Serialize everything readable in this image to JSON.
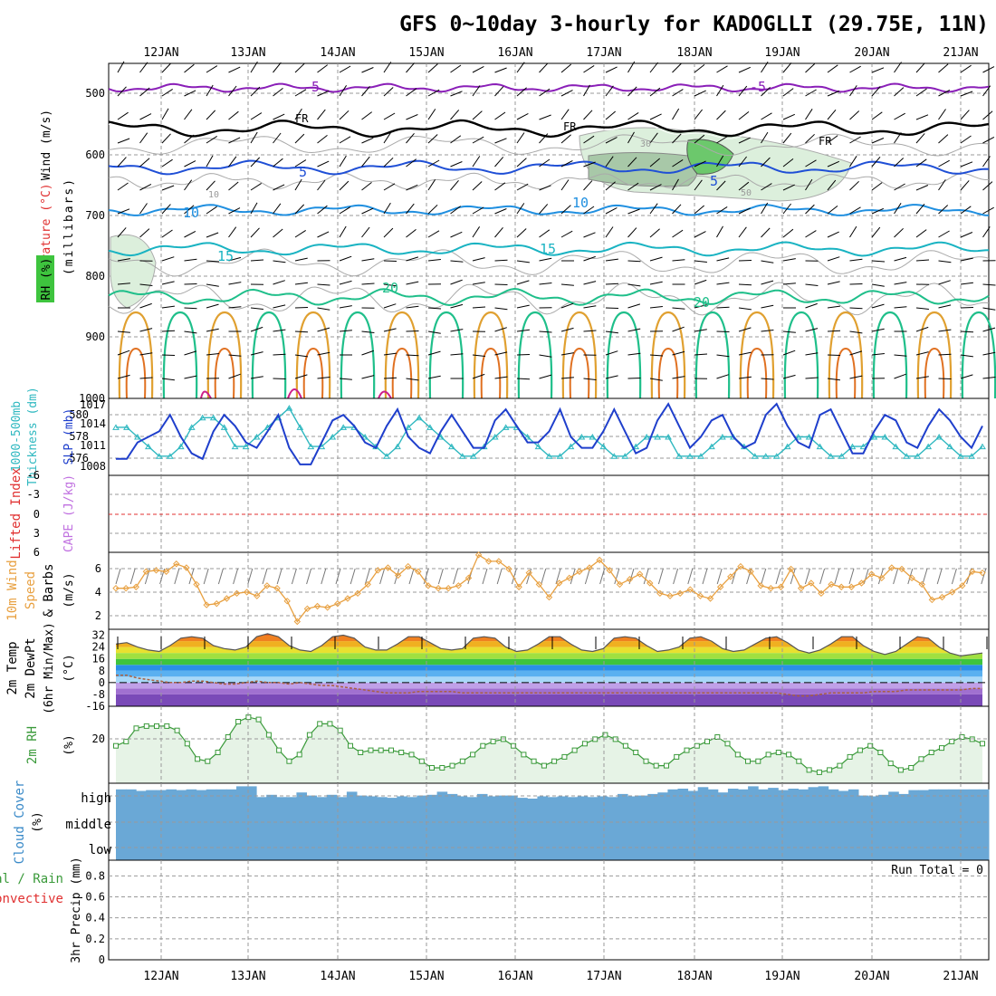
{
  "title": "GFS 0~10day 3-hourly for KADOGLLI (29.75E, 11N)",
  "date_labels": [
    "12JAN",
    "13JAN",
    "14JAN",
    "15JAN",
    "16JAN",
    "17JAN",
    "18JAN",
    "19JAN",
    "20JAN",
    "21JAN"
  ],
  "colors": {
    "purple": "#8a1fb8",
    "black": "#000000",
    "blue": "#1f4fd6",
    "lightblue": "#1f8fe0",
    "teal": "#19b3c2",
    "green": "#1fbf8a",
    "orange": "#e0a030",
    "darkorange": "#e07020",
    "magenta": "#cc1f8a",
    "slp": "#1f3fcc",
    "thick": "#2fb8c0",
    "wind": "#e8a040",
    "rh": "#3a9a3a",
    "cloud": "#6aa8d6",
    "red": "#e03030"
  },
  "panels": {
    "upper": {
      "label_wind": "Wind (m/s)",
      "label_temp": "Temperature (°C)",
      "label_rh": "RH (%)",
      "label_units": "(millibars)",
      "ylabels": [
        "500",
        "600",
        "700",
        "800",
        "900",
        "1000"
      ],
      "contour_labels": {
        "m5": "-5",
        "fr": "FR",
        "p5": "5",
        "p10": "10",
        "p15": "15",
        "p20": "20",
        "rh10": "10",
        "rh30": "30",
        "rh50": "50"
      }
    },
    "slp": {
      "label_thick": "1000-500mb",
      "label_thick2": "Thickness (dm)",
      "label_slp": "SLP (mb)",
      "thick_ticks": [
        "580",
        "578",
        "576"
      ],
      "slp_ticks": [
        "1017",
        "1014",
        "1011",
        "1008"
      ]
    },
    "cape": {
      "label_li": "Lifted Index",
      "label_cape": "CAPE (J/kg)",
      "ticks": [
        "-6",
        "-3",
        "0",
        "3",
        "6"
      ]
    },
    "wind10m": {
      "label1": "10m Wind",
      "label2": "Speed",
      "label3": "& Barbs",
      "units": "(m/s)",
      "ticks": [
        "6",
        "4",
        "2"
      ]
    },
    "temp2m": {
      "label1": "2m Temp",
      "label2": "2m DewPt",
      "label3": "(6hr Min/Max)",
      "units": "(°C)",
      "ticks": [
        "32",
        "24",
        "16",
        "8",
        "0",
        "-8",
        "-16"
      ]
    },
    "rh2m": {
      "label": "2m RH",
      "units": "(%)",
      "ticks": [
        "20"
      ]
    },
    "cloud": {
      "label": "Cloud Cover",
      "units": "(%)",
      "levels": [
        "high",
        "middle",
        "low"
      ]
    },
    "precip": {
      "label1": "Total / Rain",
      "label2": "Convective",
      "label3": "3hr Precip (mm)",
      "run_total": "Run Total = 0",
      "ticks": [
        "0.8",
        "0.6",
        "0.4",
        "0.2",
        "0"
      ]
    }
  },
  "chart_data": [
    {
      "type": "line",
      "name": "SLP",
      "values": [
        1008,
        1008,
        1011,
        1012,
        1013,
        1016,
        1012,
        1009,
        1008,
        1013,
        1016,
        1014,
        1011,
        1010,
        1013,
        1016,
        1010,
        1007,
        1007,
        1011,
        1015,
        1016,
        1014,
        1011,
        1010,
        1014,
        1017,
        1012,
        1010,
        1009,
        1013,
        1016,
        1013,
        1010,
        1010,
        1015,
        1017,
        1014,
        1011,
        1011,
        1013,
        1017,
        1012,
        1010,
        1010,
        1013,
        1017,
        1013,
        1009,
        1010,
        1015,
        1018,
        1014,
        1010,
        1012,
        1015,
        1016,
        1012,
        1010,
        1011,
        1016,
        1018,
        1014,
        1011,
        1010,
        1016,
        1017,
        1013,
        1009,
        1009,
        1013,
        1016,
        1015,
        1011,
        1010,
        1014,
        1017,
        1015,
        1012,
        1010,
        1014
      ]
    },
    {
      "type": "line",
      "name": "Thickness",
      "values": [
        579,
        579,
        578,
        577,
        576,
        576,
        577,
        579,
        580,
        580,
        579,
        577,
        577,
        578,
        579,
        580,
        581,
        579,
        577,
        577,
        578,
        579,
        579,
        578,
        577,
        576,
        577,
        579,
        580,
        579,
        578,
        577,
        576,
        576,
        577,
        578,
        579,
        579,
        578,
        577,
        576,
        576,
        577,
        578,
        578,
        577,
        576,
        576,
        577,
        578,
        578,
        578,
        576,
        576,
        576,
        577,
        578,
        578,
        577,
        576,
        576,
        576,
        577,
        578,
        578,
        577,
        576,
        576,
        577,
        577,
        578,
        578,
        577,
        576,
        576,
        577,
        578,
        577,
        576,
        576,
        577
      ]
    },
    {
      "type": "line",
      "name": "10m Wind Speed",
      "ylim": [
        1,
        7
      ],
      "values": [
        4.2,
        4.2,
        4.3,
        5.5,
        5.6,
        5.5,
        6.1,
        5.8,
        4.5,
        2.9,
        3.0,
        3.4,
        3.8,
        3.9,
        3.6,
        4.4,
        4.2,
        3.2,
        1.6,
        2.6,
        2.8,
        2.7,
        3.0,
        3.4,
        3.8,
        4.5,
        5.6,
        5.8,
        5.2,
        5.9,
        5.5,
        4.4,
        4.2,
        4.2,
        4.4,
        5.0,
        6.8,
        6.3,
        6.3,
        5.7,
        4.3,
        5.4,
        4.5,
        3.5,
        4.6,
        5.0,
        5.5,
        5.8,
        6.4,
        5.6,
        4.5,
        4.9,
        5.3,
        4.6,
        3.8,
        3.6,
        3.8,
        4.1,
        3.6,
        3.4,
        4.3,
        5.1,
        5.9,
        5.5,
        4.4,
        4.2,
        4.3,
        5.7,
        4.2,
        4.6,
        3.8,
        4.5,
        4.3,
        4.3,
        4.6,
        5.3,
        5.0,
        5.8,
        5.7,
        5.0,
        4.5,
        3.3,
        3.5,
        3.9,
        4.4,
        5.5,
        5.4
      ]
    },
    {
      "type": "area",
      "name": "2m Temp",
      "ylim": [
        -16,
        36
      ],
      "values": [
        26,
        27,
        24,
        22,
        21,
        25,
        30,
        31,
        30,
        25,
        23,
        22,
        24,
        31,
        33,
        31,
        25,
        22,
        21,
        25,
        31,
        32,
        30,
        24,
        22,
        22,
        26,
        31,
        31,
        27,
        23,
        22,
        23,
        30,
        31,
        30,
        24,
        21,
        22,
        26,
        31,
        31,
        26,
        22,
        21,
        23,
        30,
        31,
        30,
        25,
        21,
        22,
        24,
        30,
        31,
        28,
        23,
        21,
        22,
        26,
        30,
        31,
        27,
        22,
        20,
        22,
        26,
        31,
        31,
        25,
        21,
        19,
        21,
        26,
        31,
        30,
        24,
        20,
        18,
        19,
        20
      ]
    },
    {
      "type": "line",
      "name": "2m DewPt",
      "values": [
        5,
        5,
        3,
        2,
        1,
        0,
        0,
        1,
        1,
        0,
        -1,
        -1,
        0,
        1,
        0,
        0,
        -1,
        0,
        -1,
        -2,
        -2,
        -3,
        -4,
        -5,
        -6,
        -7,
        -7,
        -7,
        -6,
        -6,
        -6,
        -6,
        -7,
        -7,
        -7,
        -7,
        -7,
        -7,
        -7,
        -7,
        -7,
        -7,
        -7,
        -7,
        -7,
        -7,
        -7,
        -7,
        -7,
        -7,
        -7,
        -7,
        -7,
        -7,
        -7,
        -7,
        -7,
        -7,
        -7,
        -7,
        -7,
        -7,
        -8,
        -9,
        -9,
        -8,
        -7,
        -7,
        -7,
        -7,
        -6,
        -6,
        -6,
        -5,
        -5,
        -5,
        -5,
        -5,
        -5,
        -4,
        -4
      ]
    },
    {
      "type": "line",
      "name": "2m RH",
      "ylim": [
        0,
        35
      ],
      "values": [
        17,
        19,
        25,
        26,
        26,
        26,
        24,
        18,
        11,
        10,
        14,
        21,
        28,
        30,
        29,
        22,
        15,
        10,
        13,
        22,
        27,
        27,
        24,
        17,
        14,
        15,
        15,
        15,
        14,
        13,
        10,
        7,
        7,
        8,
        10,
        13,
        17,
        19,
        20,
        17,
        13,
        10,
        8,
        10,
        12,
        15,
        18,
        20,
        22,
        20,
        17,
        14,
        10,
        8,
        8,
        12,
        15,
        17,
        19,
        21,
        18,
        13,
        10,
        10,
        13,
        14,
        13,
        10,
        6,
        5,
        6,
        8,
        12,
        15,
        17,
        14,
        9,
        6,
        7,
        11,
        14,
        16,
        19,
        21,
        20,
        18
      ]
    },
    {
      "type": "bar",
      "name": "Cloud Cover",
      "values": [
        0.92,
        0.92,
        0.9,
        0.91,
        0.91,
        0.92,
        0.91,
        0.92,
        0.91,
        0.92,
        0.92,
        0.92,
        0.96,
        0.96,
        0.82,
        0.85,
        0.82,
        0.82,
        0.88,
        0.84,
        0.82,
        0.85,
        0.82,
        0.89,
        0.84,
        0.83,
        0.82,
        0.81,
        0.83,
        0.82,
        0.84,
        0.85,
        0.89,
        0.86,
        0.83,
        0.82,
        0.86,
        0.83,
        0.84,
        0.84,
        0.81,
        0.8,
        0.83,
        0.82,
        0.83,
        0.82,
        0.83,
        0.82,
        0.83,
        0.82,
        0.86,
        0.83,
        0.84,
        0.86,
        0.88,
        0.92,
        0.93,
        0.9,
        0.95,
        0.92,
        0.88,
        0.93,
        0.92,
        0.96,
        0.92,
        0.94,
        0.91,
        0.93,
        0.92,
        0.95,
        0.96,
        0.92,
        0.9,
        0.92,
        0.84,
        0.83,
        0.85,
        0.89,
        0.86,
        0.91,
        0.91,
        0.92,
        0.92,
        0.92,
        0.92,
        0.92,
        0.92
      ]
    },
    {
      "type": "bar",
      "name": "3hr Precip",
      "ylim": [
        0,
        1
      ],
      "values": []
    }
  ]
}
